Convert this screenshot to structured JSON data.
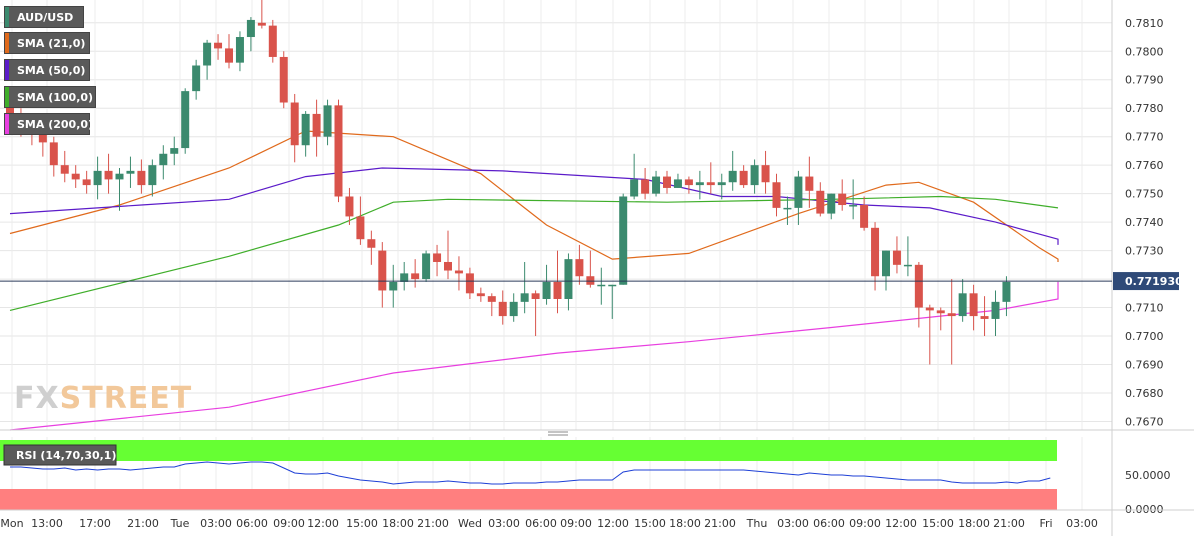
{
  "chart_data": {
    "type": "candlestick",
    "symbol": "AUD/USD",
    "indicators": [
      {
        "name": "SMA (21,0)",
        "color": "#e06a1c"
      },
      {
        "name": "SMA (50,0)",
        "color": "#5b1bc9"
      },
      {
        "name": "SMA (100,0)",
        "color": "#3fae2a"
      },
      {
        "name": "SMA (200,0)",
        "color": "#e83fe0"
      }
    ],
    "colors": {
      "up": "#3b8a6e",
      "down": "#d9534b"
    },
    "ylim": [
      0.7667,
      0.7818
    ],
    "y_ticks": [
      "0.7810",
      "0.7800",
      "0.7790",
      "0.7780",
      "0.7770",
      "0.7760",
      "0.7750",
      "0.7740",
      "0.7730",
      "0.7720",
      "0.7710",
      "0.7700",
      "0.7690",
      "0.7680",
      "0.7670"
    ],
    "last_price": "0.771930",
    "last_price_value": 0.77193,
    "x_ticks": [
      "Mon",
      "13:00",
      "17:00",
      "21:00",
      "Tue",
      "03:00",
      "06:00",
      "09:00",
      "12:00",
      "15:00",
      "18:00",
      "21:00",
      "Wed",
      "03:00",
      "06:00",
      "09:00",
      "12:00",
      "15:00",
      "18:00",
      "21:00",
      "Thu",
      "03:00",
      "06:00",
      "09:00",
      "12:00",
      "15:00",
      "18:00",
      "21:00",
      "Fri",
      "03:00"
    ],
    "candles": [
      [
        0.7782,
        0.7785,
        0.7774,
        0.7778
      ],
      [
        0.7778,
        0.778,
        0.777,
        0.7775
      ],
      [
        0.7775,
        0.7778,
        0.7767,
        0.7772
      ],
      [
        0.7772,
        0.7774,
        0.7763,
        0.7768
      ],
      [
        0.7768,
        0.777,
        0.7756,
        0.776
      ],
      [
        0.776,
        0.7765,
        0.7754,
        0.7757
      ],
      [
        0.7757,
        0.776,
        0.7752,
        0.7755
      ],
      [
        0.7755,
        0.7758,
        0.775,
        0.7753
      ],
      [
        0.7753,
        0.7763,
        0.7748,
        0.7758
      ],
      [
        0.7758,
        0.7764,
        0.775,
        0.7755
      ],
      [
        0.7755,
        0.7759,
        0.7744,
        0.7757
      ],
      [
        0.7757,
        0.7763,
        0.7752,
        0.7758
      ],
      [
        0.7758,
        0.7762,
        0.775,
        0.7753
      ],
      [
        0.7753,
        0.7762,
        0.7749,
        0.776
      ],
      [
        0.776,
        0.7767,
        0.7755,
        0.7764
      ],
      [
        0.7764,
        0.777,
        0.776,
        0.7766
      ],
      [
        0.7766,
        0.7787,
        0.7764,
        0.7786
      ],
      [
        0.7786,
        0.7797,
        0.7783,
        0.7795
      ],
      [
        0.7795,
        0.7804,
        0.779,
        0.7803
      ],
      [
        0.7803,
        0.7806,
        0.7797,
        0.7801
      ],
      [
        0.7801,
        0.7806,
        0.7794,
        0.7796
      ],
      [
        0.7796,
        0.7807,
        0.7793,
        0.7805
      ],
      [
        0.7805,
        0.7812,
        0.78,
        0.7811
      ],
      [
        0.781,
        0.7819,
        0.7808,
        0.7809
      ],
      [
        0.7809,
        0.7811,
        0.7796,
        0.7798
      ],
      [
        0.7798,
        0.78,
        0.778,
        0.7782
      ],
      [
        0.7782,
        0.7785,
        0.7761,
        0.7767
      ],
      [
        0.7767,
        0.7779,
        0.7763,
        0.7778
      ],
      [
        0.7778,
        0.7783,
        0.7763,
        0.777
      ],
      [
        0.777,
        0.7783,
        0.7767,
        0.7781
      ],
      [
        0.7781,
        0.7783,
        0.7747,
        0.7749
      ],
      [
        0.7749,
        0.7752,
        0.7739,
        0.7742
      ],
      [
        0.7742,
        0.7749,
        0.7732,
        0.7734
      ],
      [
        0.7734,
        0.7737,
        0.7725,
        0.7731
      ],
      [
        0.773,
        0.7733,
        0.771,
        0.7716
      ],
      [
        0.7716,
        0.7725,
        0.771,
        0.7719
      ],
      [
        0.7719,
        0.7726,
        0.7716,
        0.7722
      ],
      [
        0.7722,
        0.7727,
        0.7717,
        0.772
      ],
      [
        0.772,
        0.773,
        0.7719,
        0.7729
      ],
      [
        0.7729,
        0.7732,
        0.7721,
        0.7726
      ],
      [
        0.7726,
        0.7737,
        0.772,
        0.7723
      ],
      [
        0.7723,
        0.7728,
        0.7716,
        0.7722
      ],
      [
        0.7722,
        0.7724,
        0.7713,
        0.7715
      ],
      [
        0.7715,
        0.7717,
        0.7712,
        0.7714
      ],
      [
        0.7714,
        0.7715,
        0.7707,
        0.7712
      ],
      [
        0.7712,
        0.7716,
        0.7704,
        0.7707
      ],
      [
        0.7707,
        0.7715,
        0.7705,
        0.7712
      ],
      [
        0.7712,
        0.7726,
        0.7708,
        0.7715
      ],
      [
        0.7715,
        0.7716,
        0.77,
        0.7713
      ],
      [
        0.7713,
        0.7725,
        0.7711,
        0.7719
      ],
      [
        0.7719,
        0.773,
        0.7708,
        0.7713
      ],
      [
        0.7713,
        0.7729,
        0.7709,
        0.7727
      ],
      [
        0.7727,
        0.7732,
        0.7718,
        0.7721
      ],
      [
        0.7721,
        0.773,
        0.7717,
        0.7718
      ],
      [
        0.7718,
        0.7724,
        0.7711,
        0.7718
      ],
      [
        0.7718,
        0.7718,
        0.7706,
        0.7718
      ],
      [
        0.7718,
        0.775,
        0.7718,
        0.7749
      ],
      [
        0.7749,
        0.7764,
        0.7748,
        0.7755
      ],
      [
        0.7755,
        0.7759,
        0.7748,
        0.775
      ],
      [
        0.775,
        0.7758,
        0.7749,
        0.7756
      ],
      [
        0.7756,
        0.7758,
        0.775,
        0.7752
      ],
      [
        0.7752,
        0.7757,
        0.7752,
        0.7755
      ],
      [
        0.7755,
        0.7756,
        0.775,
        0.7753
      ],
      [
        0.7753,
        0.7758,
        0.7748,
        0.7754
      ],
      [
        0.7754,
        0.7761,
        0.775,
        0.7753
      ],
      [
        0.7753,
        0.7757,
        0.7748,
        0.7754
      ],
      [
        0.7754,
        0.7765,
        0.7751,
        0.7758
      ],
      [
        0.7758,
        0.776,
        0.7752,
        0.7753
      ],
      [
        0.7753,
        0.7762,
        0.775,
        0.776
      ],
      [
        0.776,
        0.7765,
        0.775,
        0.7754
      ],
      [
        0.7754,
        0.7757,
        0.7742,
        0.7745
      ],
      [
        0.7745,
        0.7749,
        0.7739,
        0.7745
      ],
      [
        0.7745,
        0.7758,
        0.7739,
        0.7756
      ],
      [
        0.7756,
        0.7763,
        0.7745,
        0.7751
      ],
      [
        0.7751,
        0.7754,
        0.7742,
        0.7743
      ],
      [
        0.7743,
        0.775,
        0.7741,
        0.775
      ],
      [
        0.775,
        0.7755,
        0.7744,
        0.7746
      ],
      [
        0.7746,
        0.7755,
        0.7741,
        0.7746
      ],
      [
        0.7746,
        0.7749,
        0.7737,
        0.7738
      ],
      [
        0.7738,
        0.774,
        0.7716,
        0.7721
      ],
      [
        0.7721,
        0.773,
        0.7716,
        0.773
      ],
      [
        0.773,
        0.7735,
        0.7722,
        0.7725
      ],
      [
        0.7725,
        0.7735,
        0.7721,
        0.7725
      ],
      [
        0.7725,
        0.7726,
        0.7703,
        0.771
      ],
      [
        0.771,
        0.7711,
        0.769,
        0.7709
      ],
      [
        0.7709,
        0.771,
        0.7702,
        0.7708
      ],
      [
        0.7708,
        0.772,
        0.769,
        0.7707
      ],
      [
        0.7707,
        0.772,
        0.7705,
        0.7715
      ],
      [
        0.7715,
        0.7718,
        0.7702,
        0.7707
      ],
      [
        0.7707,
        0.7714,
        0.77,
        0.7706
      ],
      [
        0.7706,
        0.7716,
        0.77,
        0.7712
      ],
      [
        0.7712,
        0.7721,
        0.7707,
        0.7719
      ]
    ],
    "sma_21": [
      [
        0,
        0.7736
      ],
      [
        10,
        0.7746
      ],
      [
        20,
        0.7759
      ],
      [
        27,
        0.7772
      ],
      [
        35,
        0.777
      ],
      [
        43,
        0.7757
      ],
      [
        49,
        0.7739
      ],
      [
        55,
        0.7727
      ],
      [
        62,
        0.7729
      ],
      [
        72,
        0.7743
      ],
      [
        80,
        0.7753
      ],
      [
        83,
        0.7754
      ],
      [
        88,
        0.7747
      ],
      [
        94,
        0.7731
      ],
      [
        99,
        0.7727
      ],
      [
        105,
        0.7726
      ]
    ],
    "sma_50": [
      [
        0,
        0.7743
      ],
      [
        12,
        0.7746
      ],
      [
        20,
        0.7748
      ],
      [
        27,
        0.7756
      ],
      [
        34,
        0.7759
      ],
      [
        45,
        0.7758
      ],
      [
        58,
        0.7755
      ],
      [
        65,
        0.7749
      ],
      [
        70,
        0.7749
      ],
      [
        78,
        0.7746
      ],
      [
        84,
        0.7745
      ],
      [
        90,
        0.774
      ],
      [
        97,
        0.7734
      ],
      [
        105,
        0.7732
      ]
    ],
    "sma_100": [
      [
        0,
        0.7709
      ],
      [
        20,
        0.7728
      ],
      [
        30,
        0.7739
      ],
      [
        35,
        0.7747
      ],
      [
        40,
        0.7748
      ],
      [
        60,
        0.7747
      ],
      [
        75,
        0.7748
      ],
      [
        85,
        0.7749
      ],
      [
        90,
        0.7748
      ],
      [
        100,
        0.7745
      ],
      [
        105,
        0.7745
      ]
    ],
    "sma_200": [
      [
        0,
        0.7667
      ],
      [
        20,
        0.7675
      ],
      [
        35,
        0.7687
      ],
      [
        50,
        0.7694
      ],
      [
        62,
        0.7698
      ],
      [
        75,
        0.7703
      ],
      [
        90,
        0.7709
      ],
      [
        98,
        0.7713
      ],
      [
        105,
        0.7719
      ]
    ],
    "rsi": {
      "label": "RSI (14,70,30,1)",
      "tick": "50.0000",
      "tick_zero": "0.0000",
      "values": [
        53,
        53,
        52,
        51,
        51,
        52,
        50,
        51,
        50,
        51,
        51,
        50,
        51,
        52,
        53,
        53,
        56,
        57,
        58,
        57,
        56,
        57,
        58,
        58,
        57,
        52,
        47,
        46,
        46,
        47,
        44,
        42,
        40,
        39,
        38,
        36,
        37,
        38,
        38,
        38,
        39,
        38,
        37,
        37,
        36,
        36,
        37,
        37,
        37,
        38,
        38,
        39,
        40,
        40,
        40,
        40,
        48,
        50,
        50,
        50,
        50,
        50,
        50,
        50,
        50,
        50,
        50,
        50,
        49,
        48,
        47,
        46,
        45,
        47,
        46,
        45,
        45,
        44,
        44,
        43,
        42,
        41,
        40,
        40,
        40,
        40,
        38,
        37,
        37,
        37,
        37,
        38,
        37,
        39,
        39,
        42
      ]
    }
  },
  "branding": {
    "logo": "FXSTREET"
  }
}
